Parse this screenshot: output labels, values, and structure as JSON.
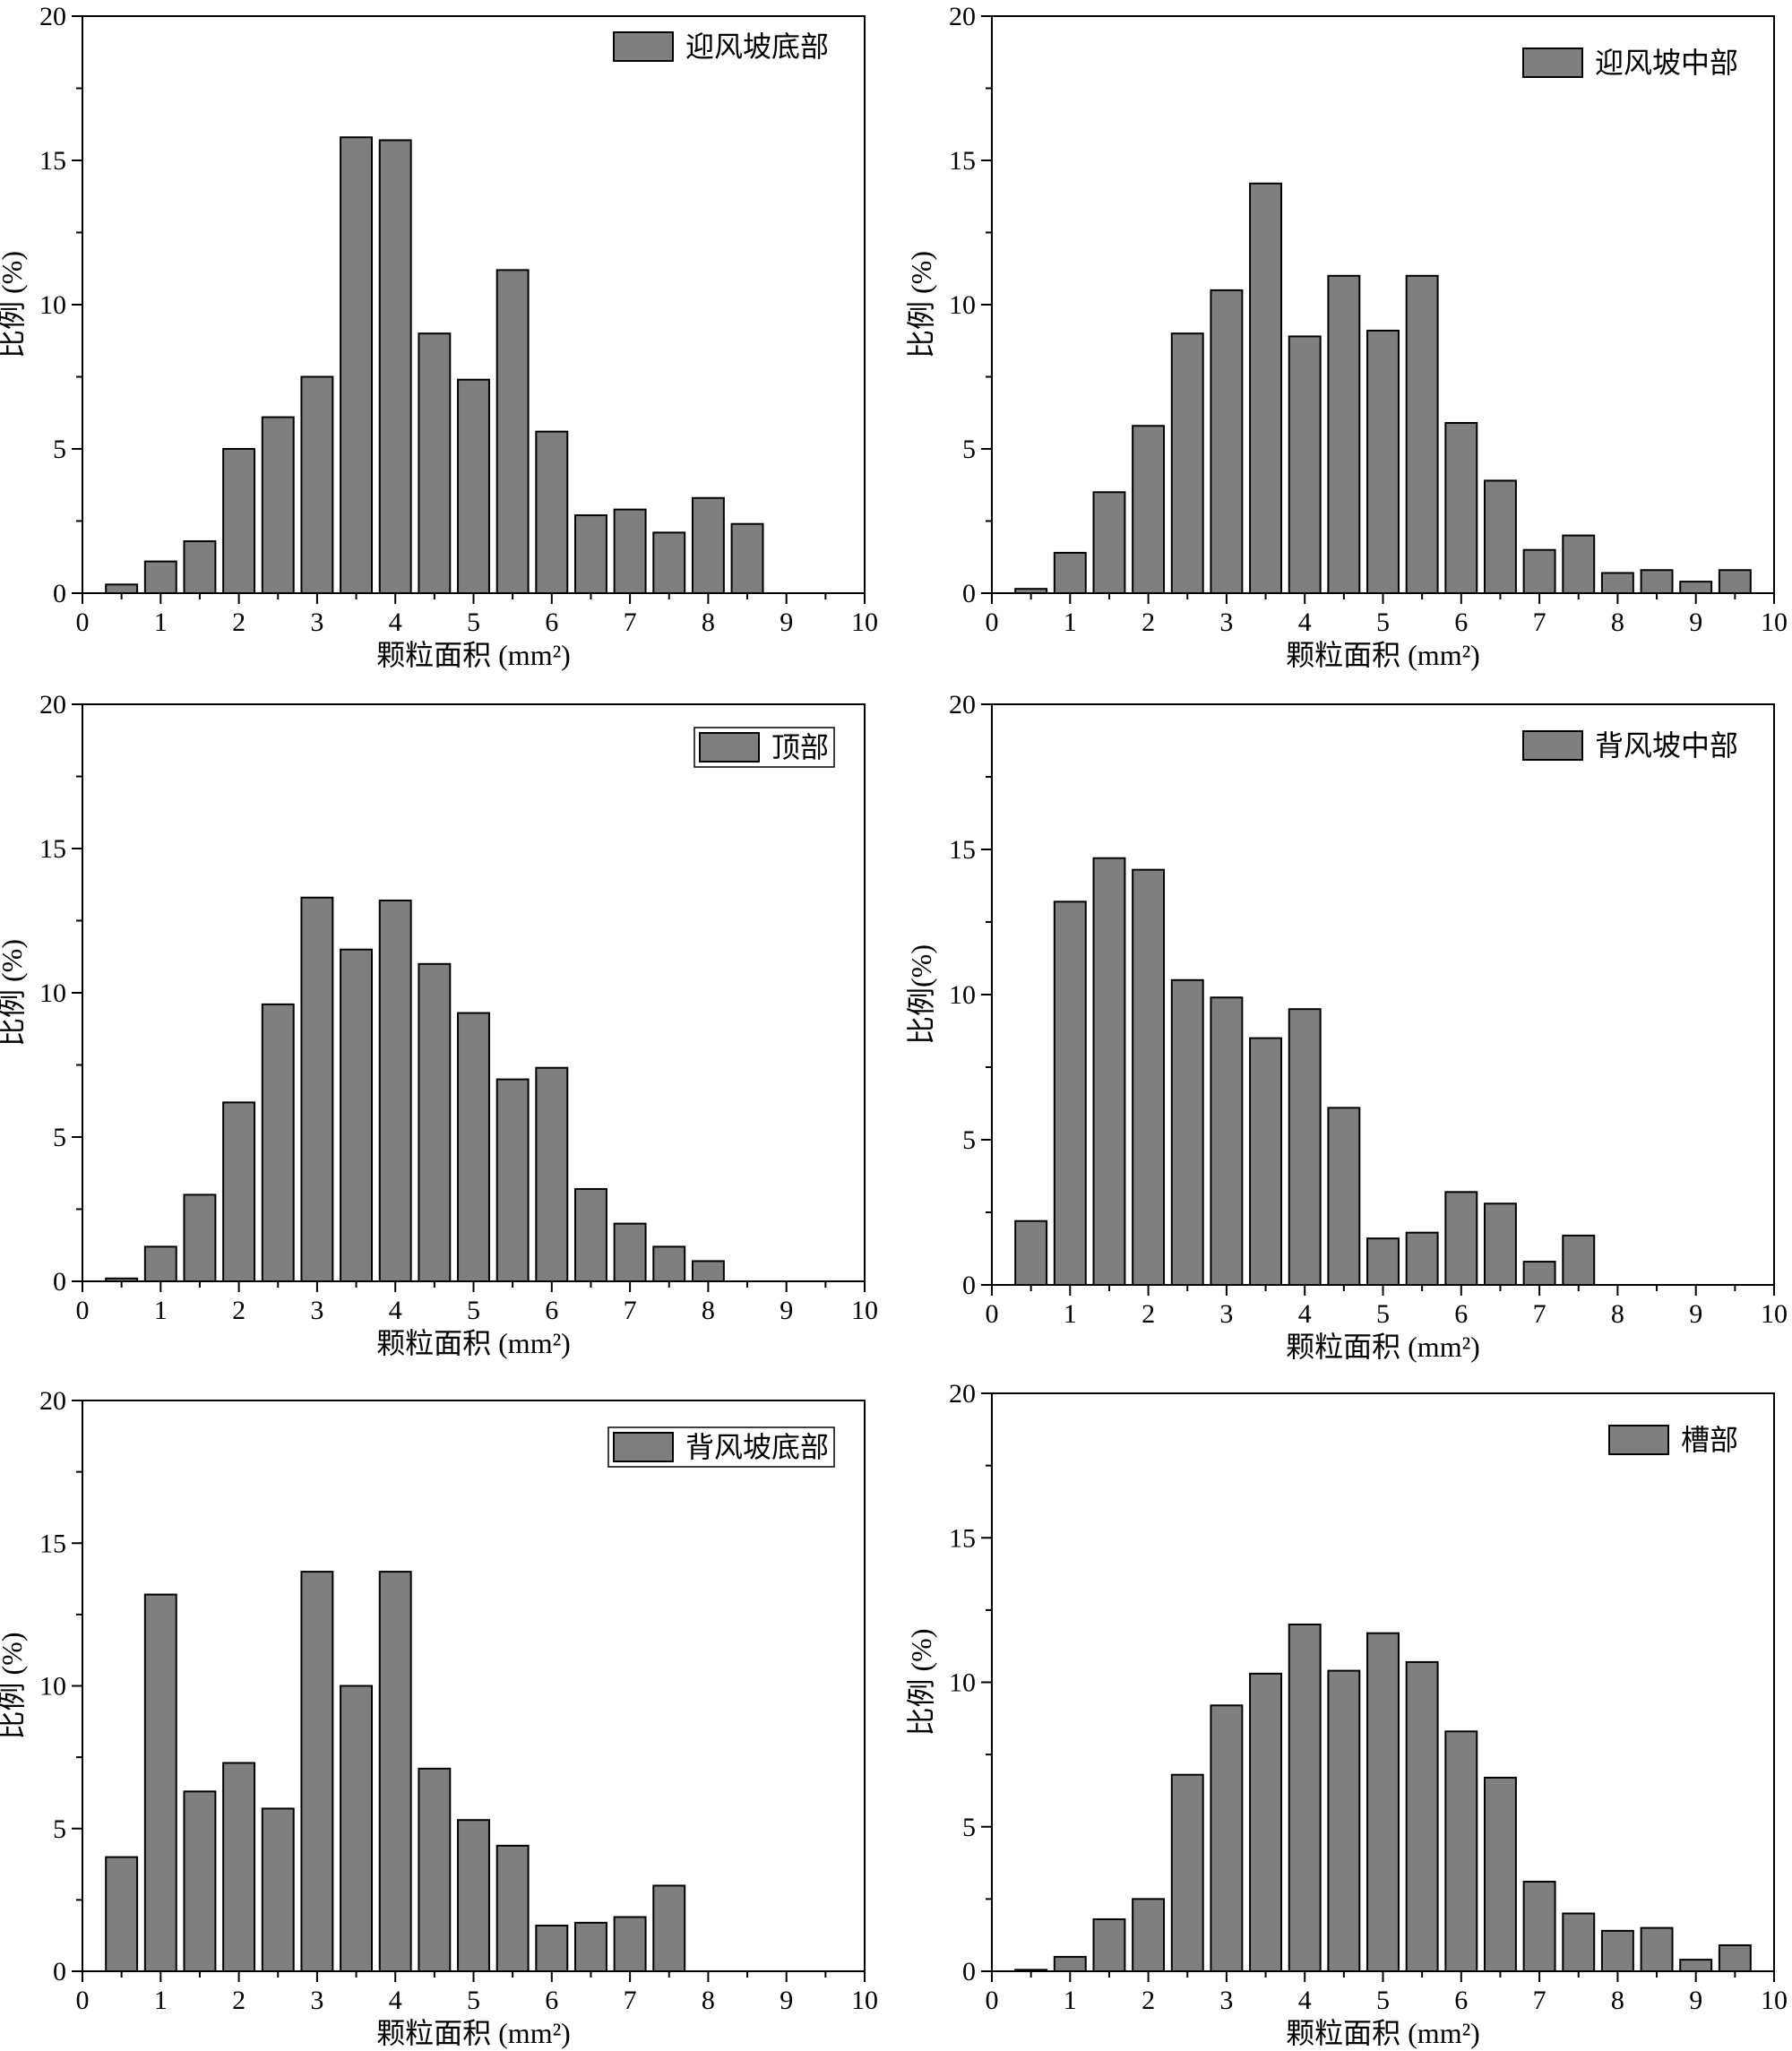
{
  "chart_data": [
    {
      "type": "bar",
      "legend": "迎风坡底部",
      "legend_box": false,
      "x": [
        0.5,
        1.0,
        1.5,
        2.0,
        2.5,
        3.0,
        3.5,
        4.0,
        4.5,
        5.0,
        5.5,
        6.0,
        6.5,
        7.0,
        7.5,
        8.0,
        8.5
      ],
      "values": [
        0.3,
        1.1,
        1.8,
        5.0,
        6.1,
        7.5,
        15.8,
        15.7,
        9.0,
        7.4,
        11.2,
        5.6,
        2.7,
        2.9,
        2.1,
        3.3,
        2.4
      ],
      "xlim": [
        0,
        10
      ],
      "ylim": [
        0,
        20
      ],
      "xticks": [
        0,
        1,
        2,
        3,
        4,
        5,
        6,
        7,
        8,
        9,
        10
      ],
      "yticks": [
        0,
        5,
        10,
        15,
        20
      ],
      "xlabel": "颗粒面积 (mm²)",
      "ylabel": "比例 (%)"
    },
    {
      "type": "bar",
      "legend": "迎风坡中部",
      "legend_box": false,
      "x": [
        0.5,
        1.0,
        1.5,
        2.0,
        2.5,
        3.0,
        3.5,
        4.0,
        4.5,
        5.0,
        5.5,
        6.0,
        6.5,
        7.0,
        7.5,
        8.0,
        8.5,
        9.0,
        9.5
      ],
      "values": [
        0.15,
        1.4,
        3.5,
        5.8,
        9.0,
        10.5,
        14.2,
        8.9,
        11.0,
        9.1,
        11.0,
        5.9,
        3.9,
        1.5,
        2.0,
        0.7,
        0.8,
        0.4,
        0.8
      ],
      "xlim": [
        0,
        10
      ],
      "ylim": [
        0,
        20
      ],
      "xticks": [
        0,
        1,
        2,
        3,
        4,
        5,
        6,
        7,
        8,
        9,
        10
      ],
      "yticks": [
        0,
        5,
        10,
        15,
        20
      ],
      "xlabel": "颗粒面积 (mm²)",
      "ylabel": "比例 (%)"
    },
    {
      "type": "bar",
      "legend": "顶部",
      "legend_box": true,
      "x": [
        0.5,
        1.0,
        1.5,
        2.0,
        2.5,
        3.0,
        3.5,
        4.0,
        4.5,
        5.0,
        5.5,
        6.0,
        6.5,
        7.0,
        7.5,
        8.0
      ],
      "values": [
        0.1,
        1.2,
        3.0,
        6.2,
        9.6,
        13.3,
        11.5,
        13.2,
        11.0,
        9.3,
        7.0,
        7.4,
        3.2,
        2.0,
        1.2,
        0.7
      ],
      "xlim": [
        0,
        10
      ],
      "ylim": [
        0,
        20
      ],
      "xticks": [
        0,
        1,
        2,
        3,
        4,
        5,
        6,
        7,
        8,
        9,
        10
      ],
      "yticks": [
        0,
        5,
        10,
        15,
        20
      ],
      "xlabel": "颗粒面积 (mm²)",
      "ylabel": "比例 (%)"
    },
    {
      "type": "bar",
      "legend": "背风坡中部",
      "legend_box": false,
      "x": [
        0.5,
        1.0,
        1.5,
        2.0,
        2.5,
        3.0,
        3.5,
        4.0,
        4.5,
        5.0,
        5.5,
        6.0,
        6.5,
        7.0,
        7.5
      ],
      "values": [
        2.2,
        13.2,
        14.7,
        14.3,
        10.5,
        9.9,
        8.5,
        9.5,
        6.1,
        1.6,
        1.8,
        3.2,
        2.8,
        0.8,
        1.7
      ],
      "xlim": [
        0,
        10
      ],
      "ylim": [
        0,
        20
      ],
      "xticks": [
        0,
        1,
        2,
        3,
        4,
        5,
        6,
        7,
        8,
        9,
        10
      ],
      "yticks": [
        0,
        5,
        10,
        15,
        20
      ],
      "xlabel": "颗粒面积 (mm²)",
      "ylabel": "比例(%)"
    },
    {
      "type": "bar",
      "legend": "背风坡底部",
      "legend_box": true,
      "x": [
        0.5,
        1.0,
        1.5,
        2.0,
        2.5,
        3.0,
        3.5,
        4.0,
        4.5,
        5.0,
        5.5,
        6.0,
        6.5,
        7.0,
        7.5
      ],
      "values": [
        4.0,
        13.2,
        6.3,
        7.3,
        5.7,
        14.0,
        10.0,
        14.0,
        7.1,
        5.3,
        4.4,
        1.6,
        1.7,
        1.9,
        3.0
      ],
      "xlim": [
        0,
        10
      ],
      "ylim": [
        0,
        20
      ],
      "xticks": [
        0,
        1,
        2,
        3,
        4,
        5,
        6,
        7,
        8,
        9,
        10
      ],
      "yticks": [
        0,
        5,
        10,
        15,
        20
      ],
      "xlabel": "颗粒面积 (mm²)",
      "ylabel": "比例 (%)"
    },
    {
      "type": "bar",
      "legend": "槽部",
      "legend_box": false,
      "x": [
        0.5,
        1.0,
        1.5,
        2.0,
        2.5,
        3.0,
        3.5,
        4.0,
        4.5,
        5.0,
        5.5,
        6.0,
        6.5,
        7.0,
        7.5,
        8.0,
        8.5,
        9.0,
        9.5
      ],
      "values": [
        0.05,
        0.5,
        1.8,
        2.5,
        6.8,
        9.2,
        10.3,
        12.0,
        10.4,
        11.7,
        10.7,
        8.3,
        6.7,
        3.1,
        2.0,
        1.4,
        1.5,
        0.4,
        0.9
      ],
      "xlim": [
        0,
        10
      ],
      "ylim": [
        0,
        20
      ],
      "xticks": [
        0,
        1,
        2,
        3,
        4,
        5,
        6,
        7,
        8,
        9,
        10
      ],
      "yticks": [
        0,
        5,
        10,
        15,
        20
      ],
      "xlabel": "颗粒面积 (mm²)",
      "ylabel": "比例 (%)"
    }
  ]
}
